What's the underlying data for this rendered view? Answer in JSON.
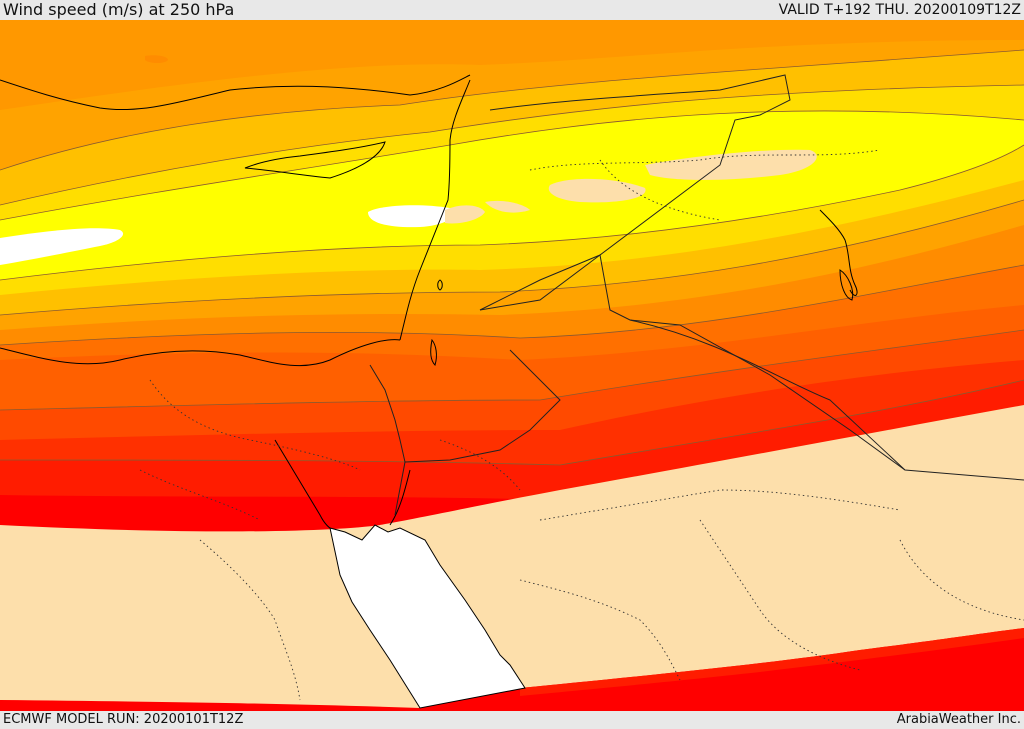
{
  "header": {
    "title": "Wind speed (m/s) at 250 hPa",
    "valid": "VALID T+192 THU. 20200109T12Z"
  },
  "footer": {
    "model_run": "ECMWF MODEL RUN: 20200101T12Z",
    "credit": "ArabiaWeather Inc."
  },
  "colors": {
    "calm": "#ffffff",
    "band_1": "#fddfab",
    "band_2": "#ffff00",
    "band_3": "#ffde00",
    "band_4": "#ffc000",
    "band_5": "#ffa300",
    "band_6": "#ff8c00",
    "band_7": "#ff6000",
    "band_8": "#ff3c00",
    "band_9": "#ff1c00",
    "band_10": "#ff0000",
    "coast": "#000000",
    "border": "#333333"
  }
}
